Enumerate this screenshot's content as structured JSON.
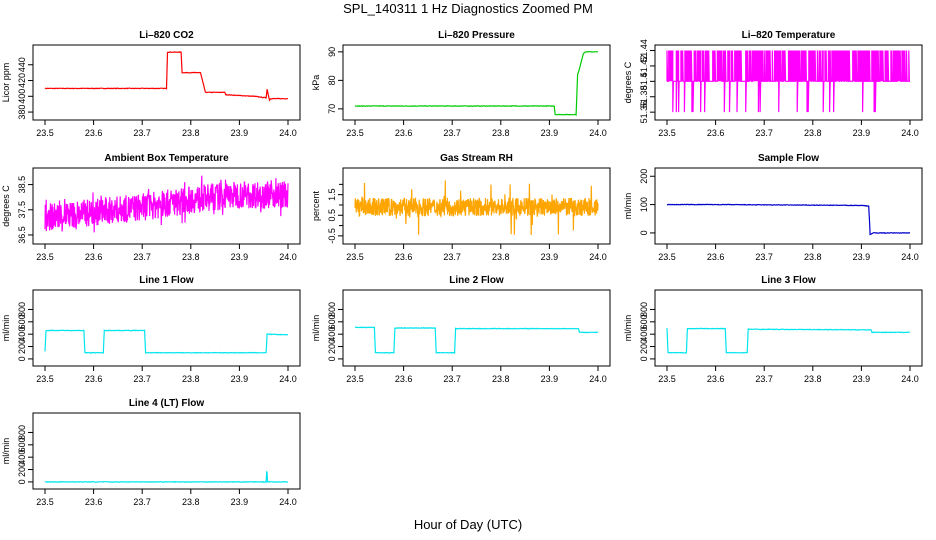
{
  "figure": {
    "title": "SPL_140311  1 Hz Diagnostics Zoomed PM",
    "xlabel": "Hour of Day (UTC)"
  },
  "chart_data": [
    {
      "type": "line",
      "title": "Li–820 CO2",
      "ylabel": "Licor ppm",
      "color": "#ff0000",
      "xlim": [
        23.5,
        24.0
      ],
      "ylim": [
        375,
        460
      ],
      "yticks": [
        380,
        400,
        420,
        440
      ],
      "xticks": [
        23.5,
        23.6,
        23.7,
        23.8,
        23.9,
        24.0
      ],
      "series": [
        {
          "name": "CO2",
          "x": [
            23.5,
            23.55,
            23.6,
            23.65,
            23.7,
            23.745,
            23.75,
            23.752,
            23.78,
            23.782,
            23.8,
            23.82,
            23.83,
            23.832,
            23.87,
            23.872,
            23.9,
            23.93,
            23.955,
            23.957,
            23.962,
            23.964,
            24.0
          ],
          "y": [
            410,
            410,
            410,
            410,
            410,
            410,
            410,
            456,
            456,
            430,
            430,
            430,
            405,
            405,
            405,
            402,
            401,
            400,
            398,
            409,
            395,
            397,
            397
          ]
        }
      ]
    },
    {
      "type": "line",
      "title": "Li–820 Pressure",
      "ylabel": "kPa",
      "color": "#00cc00",
      "xlim": [
        23.5,
        24.0
      ],
      "ylim": [
        67.5,
        91
      ],
      "yticks": [
        70,
        80,
        90
      ],
      "xticks": [
        23.5,
        23.6,
        23.7,
        23.8,
        23.9,
        24.0
      ],
      "series": [
        {
          "name": "Pressure",
          "x": [
            23.5,
            23.6,
            23.7,
            23.8,
            23.91,
            23.912,
            23.955,
            23.958,
            23.96,
            23.97,
            23.975,
            24.0
          ],
          "y": [
            71,
            71,
            71,
            71,
            71,
            68,
            68,
            82,
            83,
            89.5,
            90,
            90
          ]
        }
      ]
    },
    {
      "type": "line",
      "title": "Li–820 Temperature",
      "ylabel": "degrees C",
      "color": "#ff00ff",
      "xlim": [
        23.5,
        24.0
      ],
      "ylim": [
        51.355,
        51.442
      ],
      "yticks": [
        51.36,
        51.38,
        51.4,
        51.42,
        51.44
      ],
      "xticks": [
        23.5,
        23.6,
        23.7,
        23.8,
        23.9,
        24.0
      ],
      "series": [
        {
          "name": "Temperature",
          "base": 51.4,
          "high": 51.44,
          "low": 51.36
        }
      ]
    },
    {
      "type": "line",
      "title": "Ambient Box Temperature",
      "ylabel": "degrees C",
      "color": "#ff00ff",
      "xlim": [
        23.5,
        24.0
      ],
      "ylim": [
        36.3,
        39
      ],
      "yticks": [
        36.5,
        37.5,
        38.5
      ],
      "xticks": [
        23.5,
        23.6,
        23.7,
        23.8,
        23.9,
        24.0
      ],
      "series": [
        {
          "name": "Ambient",
          "x": [
            23.5,
            23.6,
            23.7,
            23.8,
            23.9,
            24.0
          ],
          "y": [
            37.2,
            37.4,
            37.6,
            37.9,
            38.1,
            38.1
          ]
        }
      ]
    },
    {
      "type": "line",
      "title": "Gas Stream RH",
      "ylabel": "percent",
      "color": "#ffa500",
      "xlim": [
        23.5,
        24.0
      ],
      "ylim": [
        -0.7,
        2.6
      ],
      "yticks": [
        -0.5,
        0.5,
        1.5
      ],
      "yticks_minor": [
        0,
        1,
        2
      ],
      "xticks": [
        23.5,
        23.6,
        23.7,
        23.8,
        23.9,
        24.0
      ],
      "series": [
        {
          "name": "RH",
          "mean": 0.9,
          "range": [
            -0.5,
            2.2
          ]
        }
      ]
    },
    {
      "type": "line",
      "title": "Sample Flow",
      "ylabel": "ml/min",
      "color": "#0000cc",
      "xlim": [
        23.5,
        24.0
      ],
      "ylim": [
        -25,
        215
      ],
      "yticks": [
        0,
        100,
        200
      ],
      "xticks": [
        23.5,
        23.6,
        23.7,
        23.8,
        23.9,
        24.0
      ],
      "series": [
        {
          "name": "Sample",
          "x": [
            23.5,
            23.6,
            23.7,
            23.8,
            23.9,
            23.915,
            23.918,
            23.925,
            24.0
          ],
          "y": [
            100,
            100,
            99,
            98,
            97,
            95,
            -5,
            0,
            0
          ]
        }
      ]
    },
    {
      "type": "line",
      "title": "Line 1 Flow",
      "ylabel": "ml/min",
      "color": "#00e5ee",
      "xlim": [
        23.5,
        24.0
      ],
      "ylim": [
        -50,
        1050
      ],
      "yticks": [
        0,
        200,
        400,
        600,
        800
      ],
      "xticks": [
        23.5,
        23.6,
        23.7,
        23.8,
        23.9,
        24.0
      ],
      "series": [
        {
          "name": "Line 1",
          "x": [
            23.5,
            23.502,
            23.58,
            23.582,
            23.62,
            23.622,
            23.705,
            23.707,
            23.955,
            23.957,
            24.0
          ],
          "y": [
            120,
            460,
            460,
            100,
            100,
            460,
            460,
            100,
            100,
            400,
            390
          ]
        }
      ]
    },
    {
      "type": "line",
      "title": "Line 2 Flow",
      "ylabel": "ml/min",
      "color": "#00e5ee",
      "xlim": [
        23.5,
        24.0
      ],
      "ylim": [
        -50,
        1050
      ],
      "yticks": [
        0,
        200,
        400,
        600,
        800
      ],
      "xticks": [
        23.5,
        23.6,
        23.7,
        23.8,
        23.9,
        24.0
      ],
      "series": [
        {
          "name": "Line 2",
          "x": [
            23.5,
            23.54,
            23.542,
            23.58,
            23.582,
            23.665,
            23.667,
            23.705,
            23.707,
            23.96,
            23.962,
            24.0
          ],
          "y": [
            510,
            510,
            100,
            100,
            500,
            500,
            100,
            100,
            490,
            490,
            430,
            430
          ]
        }
      ]
    },
    {
      "type": "line",
      "title": "Line 3 Flow",
      "ylabel": "ml/min",
      "color": "#00e5ee",
      "xlim": [
        23.5,
        24.0
      ],
      "ylim": [
        -50,
        1050
      ],
      "yticks": [
        0,
        200,
        400,
        600,
        800
      ],
      "xticks": [
        23.5,
        23.6,
        23.7,
        23.8,
        23.9,
        24.0
      ],
      "series": [
        {
          "name": "Line 3",
          "x": [
            23.5,
            23.502,
            23.54,
            23.542,
            23.62,
            23.622,
            23.665,
            23.667,
            23.92,
            23.922,
            24.0
          ],
          "y": [
            500,
            100,
            100,
            490,
            490,
            100,
            100,
            480,
            470,
            430,
            430
          ]
        }
      ]
    },
    {
      "type": "line",
      "title": "Line 4 (LT) Flow",
      "ylabel": "ml/min",
      "color": "#00e5ee",
      "xlim": [
        23.5,
        24.0
      ],
      "ylim": [
        -50,
        1050
      ],
      "yticks": [
        0,
        200,
        400,
        600,
        800
      ],
      "xticks": [
        23.5,
        23.6,
        23.7,
        23.8,
        23.9,
        24.0
      ],
      "series": [
        {
          "name": "Line 4",
          "x": [
            23.5,
            23.955,
            23.956,
            23.957,
            23.958,
            24.0
          ],
          "y": [
            0,
            0,
            150,
            150,
            0,
            0
          ]
        }
      ]
    }
  ]
}
